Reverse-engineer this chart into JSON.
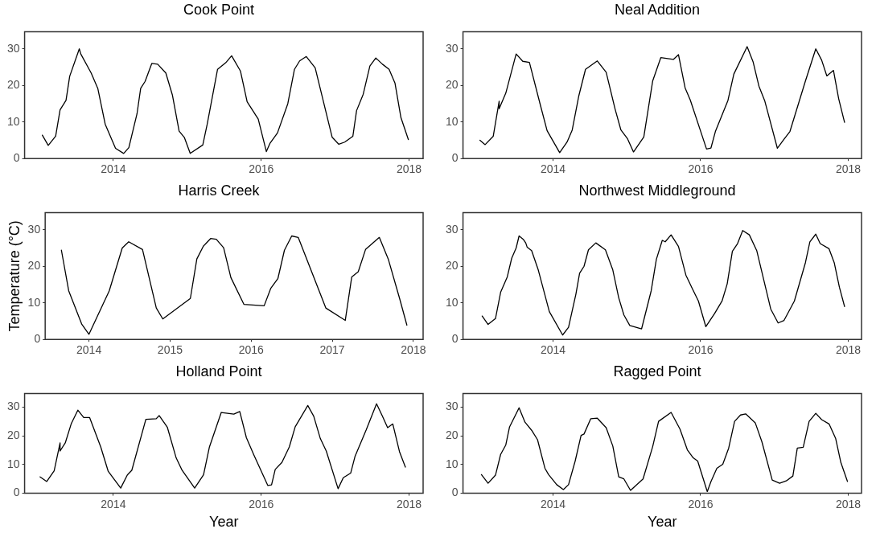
{
  "chart_data": [
    {
      "type": "line",
      "title": "Cook Point",
      "xlim": [
        2012.8,
        2018.19
      ],
      "xticks": [
        2014,
        2016,
        2018
      ],
      "ylim": [
        0,
        34.7
      ],
      "yticks": [
        0,
        10,
        20,
        30
      ],
      "grid": false,
      "legend": false,
      "marker": "none",
      "line_style": "solid",
      "x": [
        2013.04,
        2013.12,
        2013.22,
        2013.28,
        2013.36,
        2013.41,
        2013.54,
        2013.56,
        2013.7,
        2013.79,
        2013.89,
        2014.03,
        2014.14,
        2014.21,
        2014.32,
        2014.37,
        2014.43,
        2014.52,
        2014.6,
        2014.71,
        2014.8,
        2014.89,
        2014.96,
        2015.04,
        2015.21,
        2015.27,
        2015.41,
        2015.52,
        2015.6,
        2015.72,
        2015.81,
        2015.96,
        2016.07,
        2016.12,
        2016.22,
        2016.36,
        2016.45,
        2016.52,
        2016.61,
        2016.73,
        2016.96,
        2017.05,
        2017.13,
        2017.24,
        2017.29,
        2017.38,
        2017.47,
        2017.55,
        2017.64,
        2017.73,
        2017.81,
        2017.89,
        2017.99
      ],
      "series": [
        {
          "color": "#000000",
          "values": [
            6.4,
            3.6,
            6.1,
            13.3,
            15.9,
            22.5,
            30,
            28.6,
            23.4,
            19.2,
            9.4,
            2.8,
            1.4,
            3.0,
            12.2,
            19.2,
            21.1,
            26,
            25.8,
            23.4,
            17.3,
            7.5,
            5.8,
            1.4,
            3.7,
            9.4,
            24.4,
            26.2,
            28.1,
            23.9,
            15.5,
            10.8,
            1.9,
            4.2,
            7,
            15,
            24.4,
            26.7,
            27.9,
            24.8,
            5.8,
            3.9,
            4.5,
            6.1,
            13.1,
            17.6,
            25.3,
            27.5,
            25.8,
            24.4,
            20.6,
            11.2,
            5.2
          ]
        }
      ]
    },
    {
      "type": "line",
      "title": "Neal Addition",
      "xlim": [
        2012.78,
        2018.18
      ],
      "xticks": [
        2014,
        2016,
        2018
      ],
      "ylim": [
        0,
        34.7
      ],
      "yticks": [
        0,
        10,
        20,
        30
      ],
      "grid": false,
      "legend": false,
      "marker": "none",
      "line_style": "solid",
      "x": [
        2013.01,
        2013.08,
        2013.19,
        2013.27,
        2013.27,
        2013.36,
        2013.5,
        2013.59,
        2013.68,
        2013.83,
        2013.92,
        2014.09,
        2014.19,
        2014.26,
        2014.35,
        2014.44,
        2014.6,
        2014.72,
        2014.84,
        2014.92,
        2015.01,
        2015.09,
        2015.23,
        2015.35,
        2015.46,
        2015.63,
        2015.7,
        2015.79,
        2015.86,
        2016.08,
        2016.14,
        2016.2,
        2016.37,
        2016.45,
        2016.63,
        2016.71,
        2016.79,
        2016.87,
        2017.04,
        2017.12,
        2017.21,
        2017.42,
        2017.56,
        2017.64,
        2017.71,
        2017.8,
        2017.87,
        2017.95
      ],
      "series": [
        {
          "color": "#000000",
          "values": [
            5,
            3.8,
            6.1,
            15.7,
            13.6,
            17.9,
            28.6,
            26.6,
            26.3,
            14.5,
            7.6,
            1.6,
            4.5,
            7.8,
            17.2,
            24.4,
            26.7,
            23.6,
            13.6,
            7.8,
            5.4,
            1.8,
            5.9,
            21.2,
            27.6,
            27.1,
            28.4,
            19.3,
            16,
            2.6,
            2.9,
            7.4,
            15.9,
            23.1,
            30.6,
            26.5,
            19.8,
            15.7,
            2.8,
            5,
            7.4,
            21.2,
            30,
            26.9,
            22.6,
            24.1,
            16.4,
            9.9
          ]
        }
      ]
    },
    {
      "type": "line",
      "title": "Harris Creek",
      "ylabel": "Temperature (°C)",
      "xlim": [
        2013.46,
        2018.12
      ],
      "xticks": [
        2014,
        2015,
        2016,
        2017,
        2018
      ],
      "ylim": [
        0,
        34.7
      ],
      "yticks": [
        0,
        10,
        20,
        30
      ],
      "grid": false,
      "legend": false,
      "marker": "none",
      "line_style": "solid",
      "x": [
        2013.66,
        2013.75,
        2013.91,
        2014.0,
        2014.25,
        2014.41,
        2014.49,
        2014.66,
        2014.83,
        2014.91,
        2015.25,
        2015.33,
        2015.41,
        2015.5,
        2015.57,
        2015.66,
        2015.75,
        2015.91,
        2016.16,
        2016.24,
        2016.33,
        2016.41,
        2016.5,
        2016.58,
        2016.92,
        2017.16,
        2017.24,
        2017.32,
        2017.41,
        2017.58,
        2017.69,
        2017.83,
        2017.92
      ],
      "series": [
        {
          "color": "#000000",
          "values": [
            24.4,
            13.3,
            4.2,
            1.4,
            13.3,
            25,
            26.7,
            24.6,
            8.6,
            5.6,
            11.2,
            22,
            25.5,
            27.6,
            27.4,
            25.1,
            16.9,
            9.6,
            9.2,
            13.9,
            16.7,
            24.4,
            28.3,
            27.9,
            8.6,
            5.2,
            17.1,
            18.5,
            24.6,
            27.9,
            22,
            11.2,
            3.9
          ]
        }
      ]
    },
    {
      "type": "line",
      "title": "Northwest Middleground",
      "xlim": [
        2012.78,
        2018.18
      ],
      "xticks": [
        2014,
        2016,
        2018
      ],
      "ylim": [
        0,
        34.7
      ],
      "yticks": [
        0,
        10,
        20,
        30
      ],
      "grid": false,
      "legend": false,
      "marker": "none",
      "line_style": "solid",
      "x": [
        2013.04,
        2013.12,
        2013.22,
        2013.29,
        2013.38,
        2013.44,
        2013.5,
        2013.54,
        2013.6,
        2013.63,
        2013.65,
        2013.71,
        2013.8,
        2013.95,
        2014.13,
        2014.21,
        2014.31,
        2014.36,
        2014.42,
        2014.48,
        2014.58,
        2014.71,
        2014.81,
        2014.89,
        2014.96,
        2015.04,
        2015.2,
        2015.33,
        2015.4,
        2015.48,
        2015.52,
        2015.6,
        2015.7,
        2015.8,
        2015.89,
        2015.97,
        2016.07,
        2016.19,
        2016.29,
        2016.36,
        2016.43,
        2016.5,
        2016.57,
        2016.66,
        2016.76,
        2016.95,
        2017.05,
        2017.13,
        2017.27,
        2017.42,
        2017.48,
        2017.56,
        2017.62,
        2017.74,
        2017.81,
        2017.88,
        2017.95
      ],
      "series": [
        {
          "color": "#000000",
          "values": [
            6.4,
            4.1,
            5.7,
            12.9,
            17.1,
            22.2,
            25,
            28.3,
            27.3,
            26.4,
            25.2,
            24.3,
            19,
            7.6,
            1.2,
            3.3,
            12.4,
            18.1,
            20,
            24.5,
            26.4,
            24.5,
            19,
            11.4,
            6.7,
            3.8,
            2.9,
            13.3,
            21.9,
            27.1,
            26.7,
            28.6,
            25.4,
            17.6,
            13.8,
            10.5,
            3.5,
            7.1,
            10.5,
            15.2,
            24.1,
            26.2,
            29.8,
            28.6,
            24.3,
            8.3,
            4.5,
            5.2,
            10.5,
            21,
            26.7,
            28.8,
            26.2,
            24.8,
            21,
            14.3,
            9
          ]
        }
      ]
    },
    {
      "type": "line",
      "title": "Holland Point",
      "xlabel": "Year",
      "xlim": [
        2012.8,
        2018.19
      ],
      "xticks": [
        2014,
        2016,
        2018
      ],
      "ylim": [
        0,
        34.7
      ],
      "yticks": [
        0,
        10,
        20,
        30
      ],
      "grid": false,
      "legend": false,
      "marker": "none",
      "line_style": "solid",
      "x": [
        2013.01,
        2013.1,
        2013.2,
        2013.28,
        2013.28,
        2013.35,
        2013.43,
        2013.52,
        2013.6,
        2013.68,
        2013.83,
        2013.93,
        2014.1,
        2014.19,
        2014.25,
        2014.44,
        2014.58,
        2014.62,
        2014.73,
        2014.85,
        2014.93,
        2015.1,
        2015.22,
        2015.3,
        2015.46,
        2015.63,
        2015.71,
        2015.8,
        2015.9,
        2016.09,
        2016.14,
        2016.19,
        2016.28,
        2016.38,
        2016.46,
        2016.63,
        2016.71,
        2016.8,
        2016.88,
        2017.04,
        2017.11,
        2017.21,
        2017.27,
        2017.42,
        2017.56,
        2017.64,
        2017.71,
        2017.78,
        2017.87,
        2017.95
      ],
      "series": [
        {
          "color": "#000000",
          "values": [
            5.7,
            4.1,
            7.8,
            17.5,
            14.7,
            17.5,
            24.1,
            28.9,
            26.3,
            26.3,
            16.1,
            7.7,
            1.8,
            6.4,
            8,
            25.7,
            25.9,
            27,
            23,
            12.3,
            8,
            1.8,
            6.4,
            16.1,
            28.1,
            27.5,
            28.4,
            19.3,
            13.4,
            2.7,
            2.9,
            8.3,
            10.7,
            16.1,
            23.1,
            30.5,
            26.8,
            19,
            14.7,
            1.6,
            5.4,
            7,
            12.9,
            22,
            31.1,
            26.8,
            22.8,
            24.1,
            14.5,
            9.1
          ]
        }
      ]
    },
    {
      "type": "line",
      "title": "Ragged Point",
      "xlabel": "Year",
      "xlim": [
        2012.78,
        2018.18
      ],
      "xticks": [
        2014,
        2016,
        2018
      ],
      "ylim": [
        0,
        34.7
      ],
      "yticks": [
        0,
        10,
        20,
        30
      ],
      "grid": false,
      "legend": false,
      "marker": "none",
      "line_style": "solid",
      "x": [
        2013.03,
        2013.12,
        2013.22,
        2013.29,
        2013.36,
        2013.41,
        2013.54,
        2013.62,
        2013.71,
        2013.79,
        2013.89,
        2013.94,
        2014.05,
        2014.14,
        2014.21,
        2014.3,
        2014.38,
        2014.42,
        2014.51,
        2014.6,
        2014.72,
        2014.81,
        2014.89,
        2014.96,
        2015.05,
        2015.22,
        2015.35,
        2015.43,
        2015.6,
        2015.72,
        2015.82,
        2015.9,
        2015.96,
        2016.09,
        2016.14,
        2016.22,
        2016.3,
        2016.38,
        2016.46,
        2016.54,
        2016.61,
        2016.74,
        2016.83,
        2016.97,
        2017.07,
        2017.16,
        2017.25,
        2017.31,
        2017.39,
        2017.47,
        2017.56,
        2017.64,
        2017.74,
        2017.83,
        2017.9,
        2017.99
      ],
      "series": [
        {
          "color": "#000000",
          "values": [
            6.5,
            3.5,
            6.3,
            13.5,
            16.8,
            23,
            29.7,
            24.7,
            21.9,
            18.6,
            8.7,
            6.5,
            3,
            1.3,
            3,
            11.2,
            20.1,
            20.6,
            25.9,
            26.1,
            22.8,
            16.4,
            5.7,
            5,
            1,
            5,
            16.2,
            25,
            28.1,
            22.3,
            15.1,
            12.3,
            11.2,
            0.6,
            4.1,
            8.7,
            10.1,
            15.7,
            25,
            27.2,
            27.6,
            24.5,
            17.9,
            4.6,
            3.5,
            4.3,
            6,
            15.7,
            16,
            25,
            27.8,
            25.6,
            24.1,
            19,
            10.7,
            4.1
          ]
        }
      ]
    }
  ]
}
